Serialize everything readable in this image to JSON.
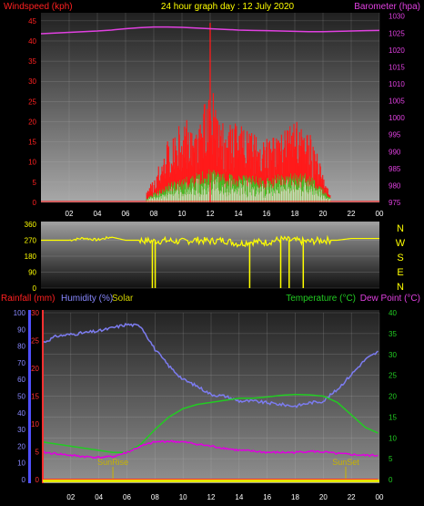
{
  "title": "24 hour graph day : 12 July 2020",
  "colors": {
    "background": "#000000",
    "wind": "#ff1a1a",
    "gust": "#cc0000",
    "barometer": "#e040e0",
    "direction": "#ffff00",
    "humidity": "#7c7cf0",
    "temperature": "#22cc22",
    "dewpoint": "#e000e0",
    "rain": "#ff3030",
    "solar": "#e6e600",
    "sun_marker": "#c8b400",
    "axis_text_white": "#ffffff"
  },
  "chart_data": [
    {
      "type": "bar",
      "left_axis_label": "Windspeed (kph)",
      "right_axis_label": "Barometer (hpa)",
      "x_ticks": [
        "02",
        "04",
        "06",
        "08",
        "10",
        "12",
        "14",
        "16",
        "18",
        "20",
        "22",
        "00"
      ],
      "x_range_hours": [
        0,
        24
      ],
      "y_left_ticks": [
        "0",
        "5",
        "10",
        "15",
        "20",
        "25",
        "30",
        "35",
        "40",
        "45"
      ],
      "y_left_range": [
        0,
        47
      ],
      "y_right_ticks": [
        "975",
        "980",
        "985",
        "990",
        "995",
        "1000",
        "1005",
        "1010",
        "1015",
        "1020",
        "1025",
        "1030"
      ],
      "y_right_range": [
        975,
        1031
      ],
      "barometer": {
        "x_hours": [
          0,
          1,
          2,
          3,
          4,
          5,
          6,
          7,
          8,
          9,
          10,
          11,
          12,
          13,
          14,
          15,
          16,
          17,
          18,
          19,
          20,
          21,
          22,
          23,
          24
        ],
        "values": [
          1024.8,
          1025.0,
          1025.2,
          1025.4,
          1025.6,
          1025.9,
          1026.3,
          1026.6,
          1026.8,
          1026.8,
          1026.7,
          1026.5,
          1026.3,
          1026.1,
          1025.9,
          1025.8,
          1025.7,
          1025.6,
          1025.5,
          1025.4,
          1025.4,
          1025.5,
          1025.6,
          1025.7,
          1025.8
        ]
      },
      "wind_envelope": {
        "x_hours": [
          7.5,
          8,
          9,
          10,
          11,
          12,
          13,
          14,
          15,
          16,
          17,
          18,
          19,
          20,
          20.5
        ],
        "gust_max": [
          3,
          6,
          16,
          22,
          18,
          30,
          19,
          20,
          18,
          16,
          17,
          21,
          18,
          8,
          2
        ],
        "avg": [
          1,
          2,
          4,
          5,
          6,
          7,
          6,
          6,
          6,
          5,
          6,
          6,
          6,
          3,
          1
        ]
      },
      "gust_peak": {
        "x_hour": 12.0,
        "value": 44.5
      }
    },
    {
      "type": "line",
      "left_axis_label": "",
      "right_axis_labels": [
        "N",
        "W",
        "S",
        "E",
        "N"
      ],
      "y_ticks": [
        "0",
        "90",
        "180",
        "270",
        "360"
      ],
      "y_range": [
        0,
        360
      ],
      "x_range_hours": [
        0,
        24
      ],
      "direction": {
        "x_hours": [
          0,
          2,
          3,
          4,
          5,
          6,
          7,
          8,
          9,
          10,
          11,
          12,
          13,
          14,
          15,
          16,
          17,
          18,
          19,
          20,
          21,
          22,
          23,
          24
        ],
        "values": [
          270,
          270,
          282,
          272,
          288,
          270,
          270,
          265,
          268,
          262,
          272,
          265,
          270,
          250,
          262,
          258,
          275,
          268,
          262,
          270,
          270,
          280,
          280,
          280
        ]
      },
      "dips": [
        {
          "x_hour": 7.9,
          "value": 0
        },
        {
          "x_hour": 8.1,
          "value": 0
        },
        {
          "x_hour": 14.8,
          "value": 0
        },
        {
          "x_hour": 17.0,
          "value": 0
        },
        {
          "x_hour": 17.6,
          "value": 0
        },
        {
          "x_hour": 18.6,
          "value": 0
        }
      ]
    },
    {
      "type": "line",
      "left_axis_labels": [
        "Rainfall (mm)",
        "Humidity (%)",
        "Solar"
      ],
      "right_axis_labels": [
        "Temperature (°C)",
        "Dew Point (°C)"
      ],
      "x_ticks": [
        "02",
        "04",
        "06",
        "08",
        "10",
        "12",
        "14",
        "16",
        "18",
        "20",
        "22",
        "00"
      ],
      "x_range_hours": [
        0,
        24
      ],
      "y_humidity_ticks": [
        "0",
        "10",
        "20",
        "30",
        "40",
        "50",
        "60",
        "70",
        "80",
        "90",
        "100"
      ],
      "y_humidity_range": [
        0,
        100
      ],
      "y_rain_ticks": [
        "0",
        "5",
        "10",
        "15",
        "20",
        "25",
        "30"
      ],
      "y_rain_range": [
        0,
        30
      ],
      "y_temp_ticks": [
        "0",
        "5",
        "10",
        "15",
        "20",
        "25",
        "30",
        "35",
        "40"
      ],
      "y_temp_range": [
        0,
        40
      ],
      "series": [
        {
          "name": "Humidity",
          "axis": "humidity",
          "x_hours": [
            0,
            1,
            2,
            3,
            4,
            5,
            6,
            7,
            8,
            9,
            10,
            11,
            12,
            13,
            14,
            15,
            16,
            17,
            18,
            19,
            20,
            21,
            22,
            23,
            24
          ],
          "values": [
            82,
            86,
            87,
            88,
            89,
            91,
            93,
            92,
            78,
            68,
            60,
            56,
            51,
            50,
            47,
            47,
            46,
            45,
            44,
            46,
            47,
            54,
            63,
            72,
            77
          ]
        },
        {
          "name": "Temperature",
          "axis": "temp",
          "x_hours": [
            0,
            1,
            2,
            3,
            4,
            5,
            6,
            7,
            8,
            9,
            10,
            11,
            12,
            13,
            14,
            15,
            16,
            17,
            18,
            19,
            20,
            21,
            22,
            23,
            24
          ],
          "values": [
            9,
            8.5,
            8,
            7.5,
            7,
            6.5,
            6.5,
            8.5,
            12,
            15,
            17,
            18,
            18.5,
            19,
            19.5,
            19.5,
            19.8,
            20.2,
            20.4,
            20.3,
            20,
            18.5,
            15.5,
            12.5,
            11
          ]
        },
        {
          "name": "Dew Point",
          "axis": "temp",
          "x_hours": [
            0,
            1,
            2,
            3,
            4,
            5,
            6,
            7,
            8,
            9,
            10,
            11,
            12,
            13,
            14,
            15,
            16,
            17,
            18,
            19,
            20,
            21,
            22,
            23,
            24
          ],
          "values": [
            6.5,
            6.2,
            5.8,
            5.5,
            5.3,
            5.5,
            6.5,
            8,
            9,
            9.2,
            9,
            8.5,
            8,
            7.5,
            7,
            6.8,
            6.5,
            6.5,
            6.5,
            6.8,
            6.6,
            6.2,
            6,
            5.8,
            5.8
          ]
        },
        {
          "name": "Rainfall",
          "axis": "rain",
          "x_hours": [
            0,
            24
          ],
          "values": [
            0,
            0
          ]
        }
      ],
      "markers": [
        {
          "label": "SunRise",
          "x_hour": 5.0
        },
        {
          "label": "SunSet",
          "x_hour": 21.6
        }
      ]
    }
  ]
}
